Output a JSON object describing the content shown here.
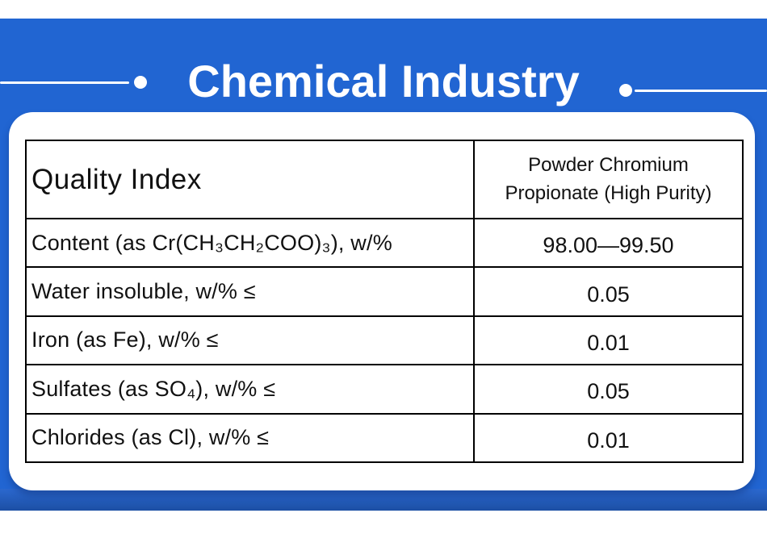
{
  "colors": {
    "accent_blue": "#2165d2",
    "banner_gradient_dark": "#1c4fa4",
    "card_background": "#ffffff",
    "title_text": "#ffffff",
    "table_border": "#000000",
    "table_text": "#111111"
  },
  "header": {
    "title": "Chemical Industry"
  },
  "table": {
    "header": {
      "col1": "Quality Index",
      "col2": "Powder Chromium Propionate (High Purity)"
    },
    "rows": [
      {
        "label": "Content (as Cr(CH₃CH₂COO)₃), w/%",
        "value": "98.00—99.50"
      },
      {
        "label": "Water insoluble, w/% ≤",
        "value": "0.05"
      },
      {
        "label": "Iron (as Fe), w/% ≤",
        "value": "0.01"
      },
      {
        "label": "Sulfates (as SO₄), w/% ≤",
        "value": "0.05"
      },
      {
        "label": "Chlorides (as Cl), w/% ≤",
        "value": "0.01"
      }
    ]
  }
}
